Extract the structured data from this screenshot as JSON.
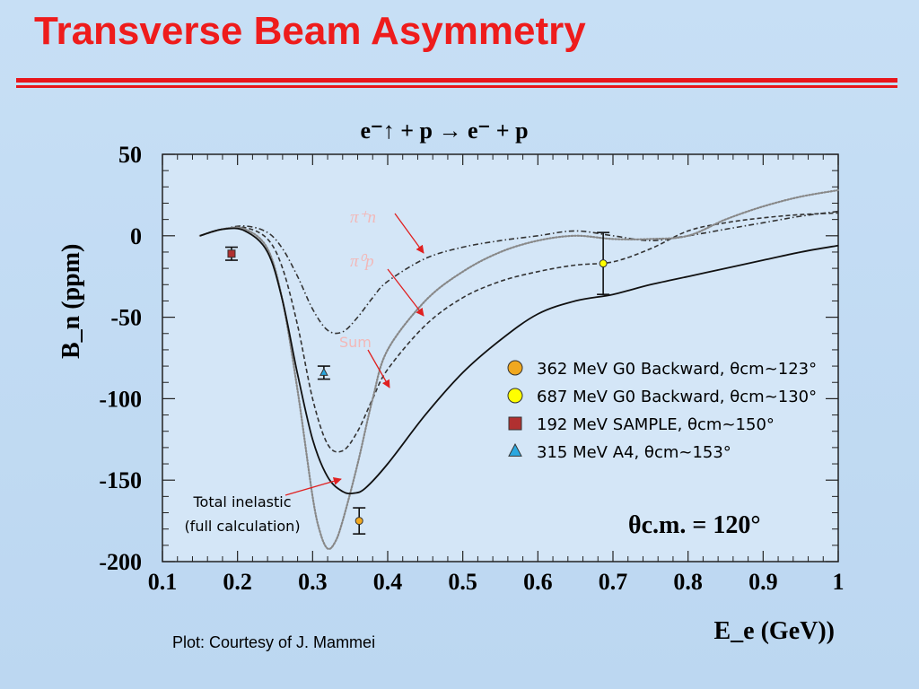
{
  "slide": {
    "title": "Transverse Beam Asymmetry",
    "caption": "Plot: Courtesy of J. Mammei"
  },
  "colors": {
    "title": "#ee1c1c",
    "background": "#c7dff5",
    "arrows": "#e02020",
    "g0_362": "#f0a820",
    "g0_687": "#ffff00",
    "sample": "#b03030",
    "a4": "#2aa8e0"
  },
  "chart_data": {
    "type": "line",
    "reaction": "e⁻↑ + p → e⁻ + p",
    "xlabel": "E_e (GeV))",
    "ylabel": "B_n (ppm)",
    "xlim": [
      0.1,
      1.0
    ],
    "ylim": [
      -200,
      50
    ],
    "xticks": [
      "0.1",
      "0.2",
      "0.3",
      "0.4",
      "0.5",
      "0.6",
      "0.7",
      "0.8",
      "0.9",
      "1"
    ],
    "yticks": [
      "50",
      "0",
      "-50",
      "-100",
      "-150",
      "-200"
    ],
    "angle_label": "θc.m. = 120°",
    "curve_labels": {
      "pi_plus_n": "π⁺n",
      "pi_zero_p": "π⁰p",
      "sum": "Sum",
      "total_inelastic_line1": "Total inelastic",
      "total_inelastic_line2": "(full calculation)"
    },
    "series": [
      {
        "style": "dash-dot",
        "x": [
          0.15,
          0.18,
          0.21,
          0.24,
          0.26,
          0.28,
          0.3,
          0.32,
          0.34,
          0.36,
          0.38,
          0.4,
          0.45,
          0.5,
          0.55,
          0.6,
          0.65,
          0.7,
          0.75,
          0.8,
          0.85,
          0.9,
          0.95,
          1.0
        ],
        "y": [
          0,
          4,
          6,
          2,
          -8,
          -25,
          -45,
          -58,
          -59,
          -50,
          -38,
          -28,
          -14,
          -7,
          -3,
          0,
          3,
          0,
          -3,
          0,
          4,
          8,
          12,
          15
        ]
      },
      {
        "style": "dashed",
        "x": [
          0.15,
          0.18,
          0.21,
          0.24,
          0.26,
          0.28,
          0.3,
          0.32,
          0.34,
          0.36,
          0.38,
          0.4,
          0.45,
          0.5,
          0.55,
          0.6,
          0.65,
          0.7,
          0.75,
          0.8,
          0.85,
          0.9,
          0.95,
          1.0
        ],
        "y": [
          0,
          4,
          5,
          -2,
          -20,
          -55,
          -100,
          -128,
          -132,
          -120,
          -100,
          -82,
          -55,
          -38,
          -28,
          -22,
          -18,
          -16,
          -8,
          3,
          8,
          11,
          13,
          14
        ]
      },
      {
        "style": "dotted",
        "x": [
          0.15,
          0.18,
          0.21,
          0.24,
          0.26,
          0.28,
          0.3,
          0.31,
          0.32,
          0.33,
          0.34,
          0.36,
          0.38,
          0.4,
          0.45,
          0.5,
          0.55,
          0.6,
          0.65,
          0.7,
          0.75,
          0.8,
          0.85,
          0.9,
          0.95,
          1.0
        ],
        "y": [
          0,
          4,
          4,
          -8,
          -40,
          -95,
          -160,
          -182,
          -192,
          -188,
          -175,
          -140,
          -100,
          -70,
          -40,
          -22,
          -10,
          -3,
          0,
          -2,
          -2,
          0,
          10,
          18,
          24,
          28
        ]
      },
      {
        "style": "solid",
        "x": [
          0.15,
          0.18,
          0.21,
          0.24,
          0.26,
          0.28,
          0.3,
          0.32,
          0.34,
          0.355,
          0.37,
          0.4,
          0.45,
          0.5,
          0.55,
          0.6,
          0.65,
          0.7,
          0.75,
          0.8,
          0.85,
          0.9,
          0.95,
          1.0
        ],
        "y": [
          0,
          4,
          3,
          -10,
          -40,
          -85,
          -125,
          -148,
          -157,
          -158,
          -155,
          -140,
          -110,
          -84,
          -64,
          -48,
          -40,
          -36,
          -30,
          -25,
          -20,
          -15,
          -10,
          -6
        ]
      }
    ],
    "data_points": [
      {
        "label": "362 MeV G0 Backward, θcm~123°",
        "x": 0.362,
        "y": -175,
        "err": 8,
        "marker": "circle",
        "color": "#f0a820"
      },
      {
        "label": "687 MeV G0 Backward, θcm~130°",
        "x": 0.687,
        "y": -17,
        "err": 19,
        "marker": "circle",
        "color": "#ffff00"
      },
      {
        "label": "192 MeV SAMPLE, θcm~150°",
        "x": 0.192,
        "y": -11,
        "err": 4,
        "marker": "square",
        "color": "#b03030"
      },
      {
        "label": "315 MeV A4, θcm~153°",
        "x": 0.315,
        "y": -84,
        "err": 4,
        "marker": "triangle",
        "color": "#2aa8e0"
      }
    ]
  }
}
